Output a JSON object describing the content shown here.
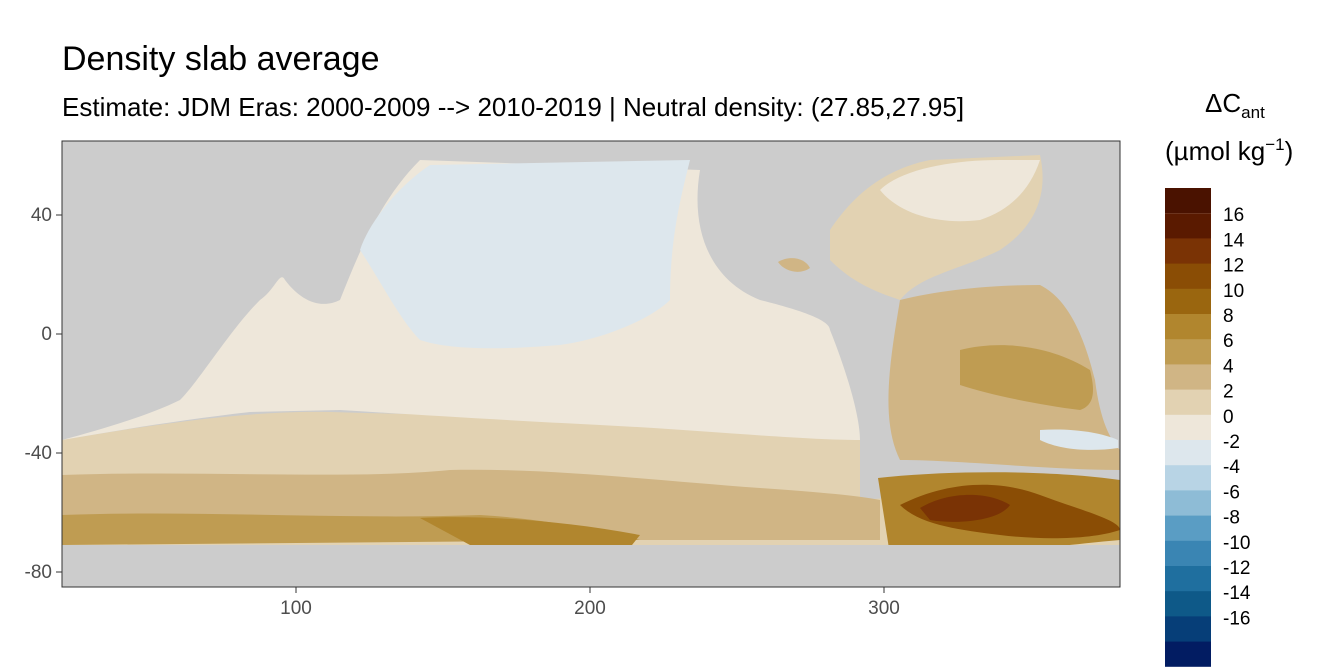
{
  "title": "Density slab average",
  "subtitle": "Estimate: JDM Eras: 2000-2009 --> 2010-2019 | Neutral density: (27.85,27.95]",
  "legend": {
    "title_main": "ΔC",
    "title_sub": "ant",
    "unit_open": "(µmol kg",
    "unit_sup": "−1",
    "unit_close": ")",
    "bins": [
      {
        "label": "16",
        "color": "#5a1a00"
      },
      {
        "label": "14",
        "color": "#7a3305"
      },
      {
        "label": "12",
        "color": "#8a4d05"
      },
      {
        "label": "10",
        "color": "#9a660f"
      },
      {
        "label": "8",
        "color": "#b1862e"
      },
      {
        "label": "6",
        "color": "#bf9c52"
      },
      {
        "label": "4",
        "color": "#d0b585"
      },
      {
        "label": "2",
        "color": "#e2d2b2"
      },
      {
        "label": "0",
        "color": "#eee7da"
      },
      {
        "label": "-2",
        "color": "#dde7ed"
      },
      {
        "label": "-4",
        "color": "#b8d4e5"
      },
      {
        "label": "-6",
        "color": "#8ebcd6"
      },
      {
        "label": "-8",
        "color": "#5a9dc4"
      },
      {
        "label": "-10",
        "color": "#3a85b3"
      },
      {
        "label": "-12",
        "color": "#1f6f9f"
      },
      {
        "label": "-14",
        "color": "#0e5988"
      },
      {
        "label": "-16",
        "color": "#063e78"
      }
    ],
    "extra_top_color": "#4a1200",
    "extra_bottom_color": "#021c62"
  },
  "axes": {
    "x_ticks": [
      "100",
      "200",
      "300"
    ],
    "y_ticks": [
      "40",
      "0",
      "-40",
      "-80"
    ]
  },
  "colors": {
    "land": "#cccccc",
    "nodata": "#ffffff",
    "panel_border": "#333333"
  }
}
